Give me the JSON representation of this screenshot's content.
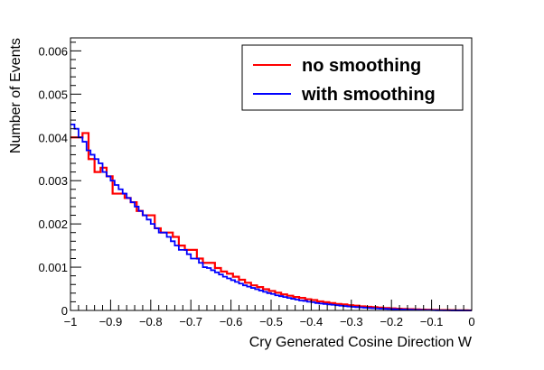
{
  "chart_data": {
    "type": "line",
    "title": "",
    "xlabel": "Cry Generated Cosine Direction W",
    "ylabel": "Number of Events",
    "xlim": [
      -1,
      0
    ],
    "ylim": [
      0,
      0.0063
    ],
    "grid": false,
    "legend_position": "top-right",
    "x_ticks": [
      -1,
      -0.9,
      -0.8,
      -0.7,
      -0.6,
      -0.5,
      -0.4,
      -0.3,
      -0.2,
      -0.1,
      0
    ],
    "x_tick_labels": [
      "−1",
      "−0.9",
      "−0.8",
      "−0.7",
      "−0.6",
      "−0.5",
      "−0.4",
      "−0.3",
      "−0.2",
      "−0.1",
      "0"
    ],
    "y_ticks": [
      0,
      0.001,
      0.002,
      0.003,
      0.004,
      0.005,
      0.006
    ],
    "y_tick_labels": [
      "0",
      "0.001",
      "0.002",
      "0.003",
      "0.004",
      "0.005",
      "0.006"
    ],
    "series": [
      {
        "name": "no smoothing",
        "color": "#ff0000",
        "style": "step",
        "x": [
          -1.0,
          -0.97,
          -0.955,
          -0.94,
          -0.925,
          -0.91,
          -0.895,
          -0.88,
          -0.865,
          -0.85,
          -0.835,
          -0.82,
          -0.805,
          -0.79,
          -0.775,
          -0.76,
          -0.745,
          -0.73,
          -0.715,
          -0.7,
          -0.685,
          -0.67,
          -0.655,
          -0.64,
          -0.625,
          -0.61,
          -0.595,
          -0.58,
          -0.565,
          -0.55,
          -0.535,
          -0.52,
          -0.505,
          -0.49,
          -0.475,
          -0.46,
          -0.445,
          -0.43,
          -0.415,
          -0.4,
          -0.385,
          -0.37,
          -0.355,
          -0.34,
          -0.325,
          -0.31,
          -0.295,
          -0.28,
          -0.265,
          -0.25,
          -0.235,
          -0.22,
          -0.205,
          -0.19,
          -0.175,
          -0.16,
          -0.145,
          -0.13,
          -0.115,
          -0.1,
          -0.085,
          -0.07,
          -0.055,
          -0.04,
          -0.025,
          -0.01
        ],
        "values": [
          0.004,
          0.0041,
          0.0035,
          0.0032,
          0.0033,
          0.0031,
          0.0027,
          0.0027,
          0.0026,
          0.0025,
          0.0023,
          0.0022,
          0.0022,
          0.0019,
          0.0018,
          0.0018,
          0.0017,
          0.0015,
          0.0014,
          0.0014,
          0.0012,
          0.0011,
          0.0011,
          0.00098,
          0.0009,
          0.00085,
          0.00078,
          0.00071,
          0.00064,
          0.00058,
          0.00054,
          0.00049,
          0.00045,
          0.00041,
          0.00037,
          0.00034,
          0.00031,
          0.00029,
          0.00026,
          0.00024,
          0.00021,
          0.00019,
          0.00017,
          0.00015,
          0.00014,
          0.00012,
          0.00011,
          9.5e-05,
          8.5e-05,
          7.5e-05,
          6.5e-05,
          5.5e-05,
          4.8e-05,
          4e-05,
          3.4e-05,
          2.8e-05,
          2.3e-05,
          1.9e-05,
          1.5e-05,
          1.2e-05,
          9e-06,
          7e-06,
          5e-06,
          3e-06,
          2e-06,
          1e-06
        ]
      },
      {
        "name": "with smoothing",
        "color": "#0000ff",
        "style": "step",
        "x": [
          -1.0,
          -0.99,
          -0.98,
          -0.97,
          -0.96,
          -0.95,
          -0.94,
          -0.93,
          -0.92,
          -0.91,
          -0.9,
          -0.89,
          -0.88,
          -0.87,
          -0.86,
          -0.85,
          -0.84,
          -0.83,
          -0.82,
          -0.81,
          -0.8,
          -0.79,
          -0.78,
          -0.77,
          -0.76,
          -0.75,
          -0.74,
          -0.73,
          -0.72,
          -0.71,
          -0.7,
          -0.69,
          -0.68,
          -0.67,
          -0.66,
          -0.65,
          -0.64,
          -0.63,
          -0.62,
          -0.61,
          -0.6,
          -0.59,
          -0.58,
          -0.57,
          -0.56,
          -0.55,
          -0.54,
          -0.53,
          -0.52,
          -0.51,
          -0.5,
          -0.49,
          -0.48,
          -0.47,
          -0.46,
          -0.45,
          -0.44,
          -0.43,
          -0.42,
          -0.41,
          -0.4,
          -0.39,
          -0.38,
          -0.37,
          -0.36,
          -0.35,
          -0.34,
          -0.33,
          -0.32,
          -0.31,
          -0.3,
          -0.29,
          -0.28,
          -0.27,
          -0.26,
          -0.25,
          -0.24,
          -0.23,
          -0.22,
          -0.21,
          -0.2,
          -0.19,
          -0.18,
          -0.17,
          -0.16,
          -0.15,
          -0.14,
          -0.13,
          -0.12,
          -0.11,
          -0.1,
          -0.09,
          -0.08,
          -0.07,
          -0.06,
          -0.05,
          -0.04,
          -0.03,
          -0.02,
          -0.01
        ],
        "values": [
          0.0043,
          0.0042,
          0.004,
          0.0039,
          0.0037,
          0.0036,
          0.0035,
          0.0034,
          0.0032,
          0.0031,
          0.003,
          0.0029,
          0.0028,
          0.0027,
          0.0026,
          0.0025,
          0.0024,
          0.0023,
          0.0022,
          0.0021,
          0.002,
          0.0019,
          0.0018,
          0.0018,
          0.0017,
          0.0016,
          0.0015,
          0.0014,
          0.0014,
          0.0013,
          0.0012,
          0.0012,
          0.0011,
          0.001,
          0.00098,
          0.00093,
          0.00088,
          0.00083,
          0.00078,
          0.00074,
          0.0007,
          0.00066,
          0.00062,
          0.00058,
          0.00055,
          0.00052,
          0.00049,
          0.00046,
          0.00043,
          0.0004,
          0.00038,
          0.00035,
          0.00033,
          0.00031,
          0.00029,
          0.00027,
          0.00025,
          0.00023,
          0.00022,
          0.0002,
          0.00019,
          0.00017,
          0.00016,
          0.00015,
          0.00014,
          0.00013,
          0.00012,
          0.00011,
          0.0001,
          9.2e-05,
          8.4e-05,
          7.7e-05,
          7e-05,
          6.4e-05,
          5.8e-05,
          5.2e-05,
          4.7e-05,
          4.2e-05,
          3.8e-05,
          3.4e-05,
          3e-05,
          2.6e-05,
          2.3e-05,
          2e-05,
          1.7e-05,
          1.5e-05,
          1.2e-05,
          1e-05,
          8e-06,
          7e-06,
          5e-06,
          4e-06,
          3e-06,
          2e-06,
          2e-06,
          1e-06,
          1e-06,
          1e-06,
          5e-07,
          3e-07
        ]
      }
    ]
  }
}
